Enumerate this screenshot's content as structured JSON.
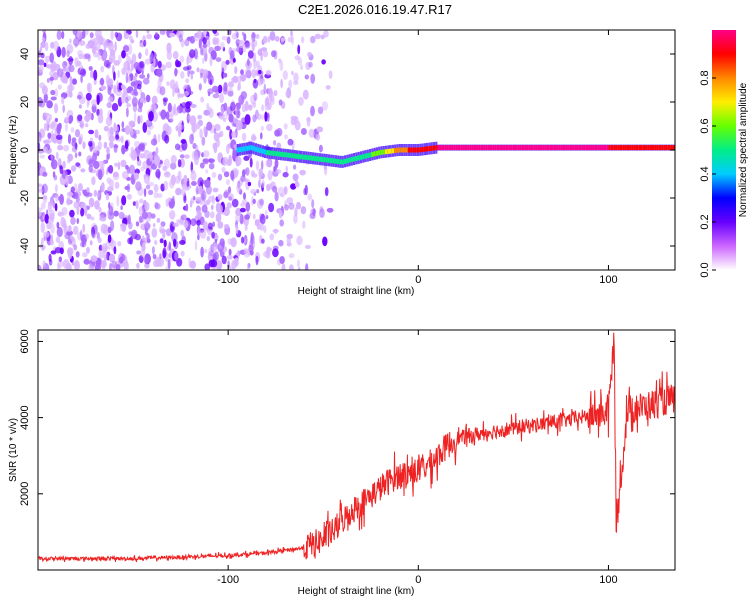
{
  "title": "C2E1.2026.016.19.47.R17",
  "colors": {
    "snr_line": "#ee2222",
    "frame": "#000000",
    "background": "#ffffff",
    "colormap": [
      "#ffffff",
      "#cc66ff",
      "#6600ff",
      "#0000ff",
      "#00ccff",
      "#00ee88",
      "#66ff00",
      "#ffee00",
      "#ff8800",
      "#ff0000",
      "#ff0088"
    ]
  },
  "chart_data": [
    {
      "type": "heatmap",
      "title": "",
      "xlabel": "Height of straight line (km)",
      "ylabel": "Frequency (Hz)",
      "xlim": [
        -200,
        135
      ],
      "ylim": [
        -50,
        50
      ],
      "xticks": [
        -100,
        0,
        100
      ],
      "yticks": [
        -40,
        -20,
        0,
        20,
        40
      ],
      "colorbar": {
        "label": "Normalized spectral amplitude",
        "range": [
          0.0,
          1.0
        ],
        "ticks": [
          "0.0",
          "0.2",
          "0.4",
          "0.6",
          "0.8"
        ]
      },
      "signal_track": {
        "description_points_height_km": [
          -95,
          -88,
          -80,
          -70,
          -60,
          -50,
          -40,
          -30,
          -20,
          -10,
          0,
          10,
          60,
          100,
          120,
          135
        ],
        "frequency_hz": [
          0,
          1,
          -1,
          -2,
          -3,
          -4,
          -5,
          -3,
          -1,
          0,
          0,
          1,
          1,
          1,
          1,
          1
        ],
        "amplitude": [
          0.35,
          0.4,
          0.45,
          0.45,
          0.5,
          0.5,
          0.45,
          0.5,
          0.6,
          0.8,
          0.9,
          0.95,
          0.95,
          0.95,
          0.9,
          0.85
        ]
      },
      "noise_region_km": [
        -200,
        -55
      ]
    },
    {
      "type": "line",
      "title": "",
      "xlabel": "Height of straight line (km)",
      "ylabel": "SNR (10 * v/v)",
      "xlim": [
        -200,
        135
      ],
      "ylim": [
        0,
        6300
      ],
      "xticks": [
        -100,
        0,
        100
      ],
      "yticks": [
        2000,
        4000,
        6000
      ],
      "series": [
        {
          "name": "SNR",
          "x": [
            -200,
            -150,
            -100,
            -80,
            -70,
            -60,
            -50,
            -45,
            -40,
            -35,
            -30,
            -25,
            -20,
            -15,
            -10,
            -5,
            0,
            5,
            10,
            15,
            20,
            30,
            40,
            50,
            60,
            70,
            80,
            90,
            100,
            103,
            104,
            110,
            120,
            130,
            135
          ],
          "y": [
            300,
            300,
            380,
            450,
            520,
            580,
            800,
            1000,
            1300,
            1550,
            1750,
            1950,
            2150,
            2350,
            2500,
            2550,
            2600,
            2750,
            3000,
            3250,
            3450,
            3550,
            3650,
            3720,
            3800,
            3870,
            3950,
            4050,
            4150,
            6100,
            1100,
            4200,
            4300,
            4450,
            4500
          ]
        }
      ]
    }
  ]
}
